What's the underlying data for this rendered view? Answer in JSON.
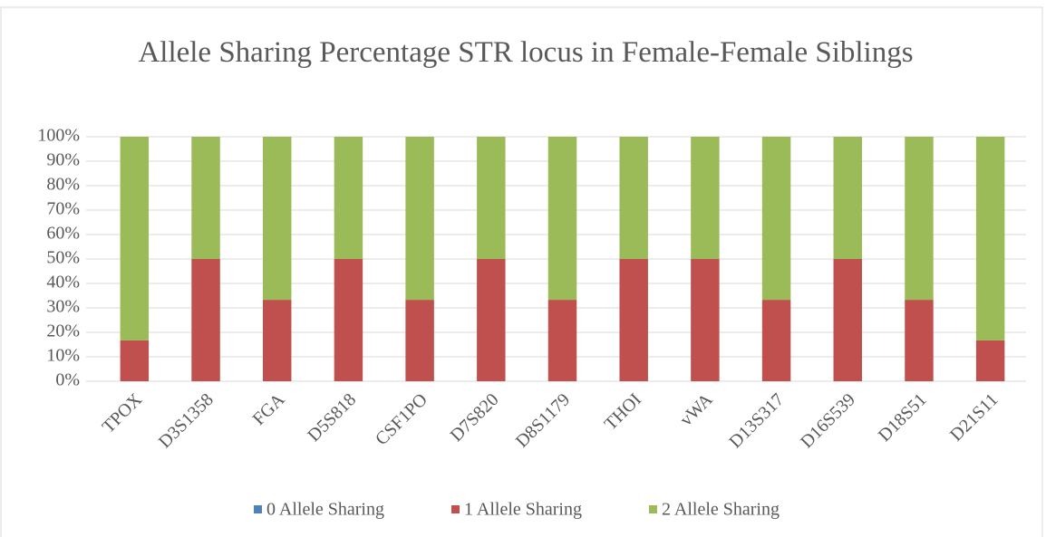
{
  "chart_data": {
    "type": "stacked_bar",
    "title": "Allele Sharing Percentage STR locus in Female-Female Siblings",
    "categories": [
      "TPOX",
      "D3S1358",
      "FGA",
      "D5S818",
      "CSF1PO",
      "D7S820",
      "D8S1179",
      "THOI",
      "vWA",
      "D13S317",
      "D16S539",
      "D18S51",
      "D21S11"
    ],
    "series": [
      {
        "name": "0 Allele Sharing",
        "color": "#4f81bd",
        "values": [
          0,
          0,
          0,
          0,
          0,
          0,
          0,
          0,
          0,
          0,
          0,
          0,
          0
        ]
      },
      {
        "name": "1 Allele Sharing",
        "color": "#c0504d",
        "values": [
          16.7,
          50,
          33.3,
          50,
          33.3,
          50,
          33.3,
          50,
          50,
          33.3,
          50,
          33.3,
          16.7
        ]
      },
      {
        "name": "2 Allele Sharing",
        "color": "#9bbb59",
        "values": [
          83.3,
          50,
          66.7,
          50,
          66.7,
          50,
          66.7,
          50,
          50,
          66.7,
          50,
          66.7,
          83.3
        ]
      }
    ],
    "ylim": [
      0,
      100
    ],
    "yticks": [
      {
        "value": 0,
        "label": "0%"
      },
      {
        "value": 10,
        "label": "10%"
      },
      {
        "value": 20,
        "label": "20%"
      },
      {
        "value": 30,
        "label": "30%"
      },
      {
        "value": 40,
        "label": "40%"
      },
      {
        "value": 50,
        "label": "50%"
      },
      {
        "value": 60,
        "label": "60%"
      },
      {
        "value": 70,
        "label": "70%"
      },
      {
        "value": 80,
        "label": "80%"
      },
      {
        "value": 90,
        "label": "90%"
      },
      {
        "value": 100,
        "label": "100%"
      }
    ],
    "grid": true,
    "legend": "bottom"
  }
}
